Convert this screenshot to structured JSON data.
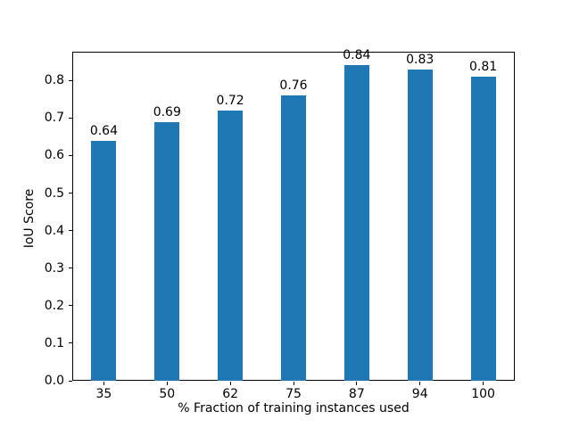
{
  "figure": {
    "background": "#ffffff",
    "text_color": "#000000",
    "frame_color": "#000000"
  },
  "chart_data": {
    "type": "bar",
    "title": "",
    "xlabel": "% Fraction of training instances used",
    "ylabel": "IoU Score",
    "categories": [
      "35",
      "50",
      "62",
      "75",
      "87",
      "94",
      "100"
    ],
    "values": [
      0.64,
      0.69,
      0.72,
      0.76,
      0.84,
      0.83,
      0.81
    ],
    "bar_labels": [
      "0.64",
      "0.69",
      "0.72",
      "0.76",
      "0.84",
      "0.83",
      "0.81"
    ],
    "bar_color": "#1f77b4",
    "ylim": [
      0.0,
      0.8765
    ],
    "yticks": [
      0.0,
      0.1,
      0.2,
      0.3,
      0.4,
      0.5,
      0.6,
      0.7,
      0.8
    ],
    "ytick_labels": [
      "0.0",
      "0.1",
      "0.2",
      "0.3",
      "0.4",
      "0.5",
      "0.6",
      "0.7",
      "0.8"
    ],
    "grid": false,
    "legend": null
  }
}
